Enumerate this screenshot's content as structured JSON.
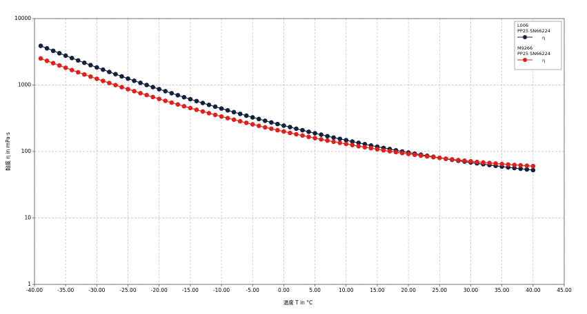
{
  "chart_data": {
    "type": "line",
    "y_scale": "log",
    "grid": true,
    "legend_position": "upper-right",
    "x_label": "温度 T in °C",
    "y_label": "黏度 η in mPa·s",
    "xlim": [
      -40,
      45
    ],
    "ylim": [
      1,
      10000
    ],
    "xticks": [
      {
        "value": -40,
        "label": "-40.00"
      },
      {
        "value": -35,
        "label": "-35.00"
      },
      {
        "value": -30,
        "label": "-30.00"
      },
      {
        "value": -25,
        "label": "-25.00"
      },
      {
        "value": -20,
        "label": "-20.00"
      },
      {
        "value": -15,
        "label": "-15.00"
      },
      {
        "value": -10,
        "label": "-10.00"
      },
      {
        "value": -5,
        "label": "-5.00"
      },
      {
        "value": 0,
        "label": "0.00"
      },
      {
        "value": 5,
        "label": "5.00"
      },
      {
        "value": 10,
        "label": "10.00"
      },
      {
        "value": 15,
        "label": "15.00"
      },
      {
        "value": 20,
        "label": "20.00"
      },
      {
        "value": 25,
        "label": "25.00"
      },
      {
        "value": 30,
        "label": "30.00"
      },
      {
        "value": 35,
        "label": "35.00"
      },
      {
        "value": 40,
        "label": "40.00"
      },
      {
        "value": 45,
        "label": "45.00"
      }
    ],
    "yticks": [
      1,
      10,
      100,
      1000,
      10000
    ],
    "x": [
      -39,
      -38,
      -37,
      -36,
      -35,
      -34,
      -33,
      -32,
      -31,
      -30,
      -29,
      -28,
      -27,
      -26,
      -25,
      -24,
      -23,
      -22,
      -21,
      -20,
      -19,
      -18,
      -17,
      -16,
      -15,
      -14,
      -13,
      -12,
      -11,
      -10,
      -9,
      -8,
      -7,
      -6,
      -5,
      -4,
      -3,
      -2,
      -1,
      0,
      1,
      2,
      3,
      4,
      5,
      6,
      7,
      8,
      9,
      10,
      11,
      12,
      13,
      14,
      15,
      16,
      17,
      18,
      19,
      20,
      21,
      22,
      23,
      24,
      25,
      26,
      27,
      28,
      29,
      30,
      31,
      32,
      33,
      34,
      35,
      36,
      37,
      38,
      39,
      40
    ],
    "series": [
      {
        "name": "L006",
        "subtitle": "PP25 SN66224",
        "symbol_label": "η",
        "color": "#14213d",
        "values": [
          3890,
          3570,
          3278,
          3010,
          2768,
          2548,
          2347,
          2163,
          1995,
          1842,
          1702,
          1574,
          1457,
          1349,
          1251,
          1160,
          1078,
          1001,
          931,
          867,
          808,
          753,
          703,
          656,
          613,
          574,
          537,
          503,
          472,
          443,
          416,
          391,
          368,
          346,
          326,
          308,
          290,
          274,
          259,
          245,
          233,
          220,
          209,
          198,
          188,
          179,
          170,
          162,
          155,
          148,
          141,
          135,
          129,
          123,
          118,
          113,
          109,
          104,
          100,
          96.4,
          92.8,
          89.4,
          86.2,
          83.2,
          80.3,
          77.6,
          75.1,
          72.7,
          70.4,
          68.3,
          66.3,
          64.4,
          62.6,
          60.8,
          59.3,
          57.7,
          56.3,
          55.0,
          53.7,
          52.5
        ]
      },
      {
        "name": "M9266",
        "subtitle": "PP25 SN66224",
        "symbol_label": "η",
        "color": "#e0201b",
        "values": [
          2512,
          2315,
          2135,
          1971,
          1821,
          1684,
          1558,
          1443,
          1339,
          1243,
          1154,
          1073,
          998,
          930,
          867,
          809,
          755,
          706,
          660,
          618,
          579,
          543,
          510,
          479,
          451,
          424,
          400,
          377,
          356,
          336,
          318,
          301,
          285,
          270,
          256,
          243,
          231,
          220,
          209,
          200,
          190,
          182,
          174,
          166,
          159,
          152,
          146,
          140,
          135,
          130,
          125,
          120,
          116,
          112,
          108,
          104,
          101,
          97.7,
          94.7,
          91.8,
          89.2,
          86.7,
          84.3,
          82.1,
          80.0,
          78.0,
          76.1,
          74.4,
          72.7,
          71.2,
          69.7,
          68.4,
          67.1,
          65.9,
          64.8,
          63.7,
          62.8,
          61.9,
          61.0,
          60.3
        ]
      }
    ]
  }
}
